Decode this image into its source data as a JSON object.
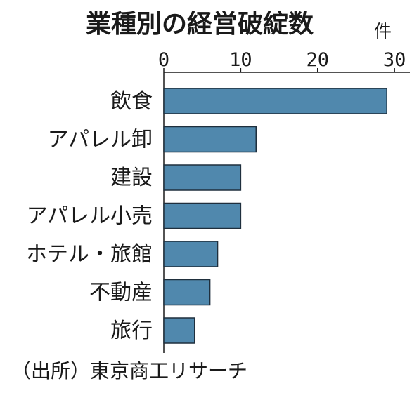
{
  "chart_data": {
    "type": "bar",
    "orientation": "horizontal",
    "title": "業種別の経営破綻数",
    "unit_label": "件",
    "categories": [
      "飲食",
      "アパレル卸",
      "建設",
      "アパレル小売",
      "ホテル・旅館",
      "不動産",
      "旅行"
    ],
    "values": [
      29,
      12,
      10,
      10,
      7,
      6,
      4
    ],
    "xlim": [
      0,
      32
    ],
    "xticks": [
      0,
      10,
      20,
      30
    ],
    "xtick_labels": [
      "0",
      "10",
      "20",
      "30"
    ],
    "axis_position": "top",
    "grid": false,
    "legend": "none",
    "bar_color": "#5088ad",
    "source": "（出所）東京商工リサーチ"
  }
}
